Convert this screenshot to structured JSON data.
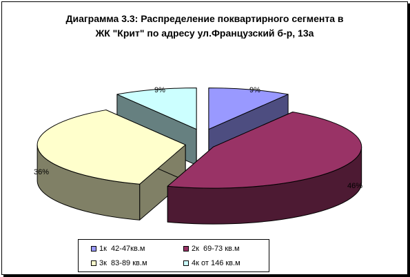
{
  "title_line1": "Диаграмма 3.3: Распределение поквартирного сегмента в",
  "title_line2": "ЖК \"Крит\" по адресу ул.Французский б-р, 13а",
  "chart_data": {
    "type": "pie",
    "title": "Диаграмма 3.3: Распределение поквартирного сегмента в ЖК \"Крит\" по адресу ул.Французский б-р, 13а",
    "three_d": true,
    "exploded": true,
    "legend_position": "bottom",
    "categories": [
      "1к  42-47кв.м",
      "2к  69-73 кв.м",
      "3к  83-89 кв.м",
      "4к от 146 кв.м"
    ],
    "values": [
      9,
      46,
      36,
      9
    ],
    "data_labels": [
      "9%",
      "46%",
      "36%",
      "9%"
    ],
    "colors": [
      "#9999ff",
      "#993366",
      "#ffffcc",
      "#ccffff"
    ],
    "side_colors": [
      "#4d4d80",
      "#4d1a33",
      "#808066",
      "#668080"
    ]
  }
}
